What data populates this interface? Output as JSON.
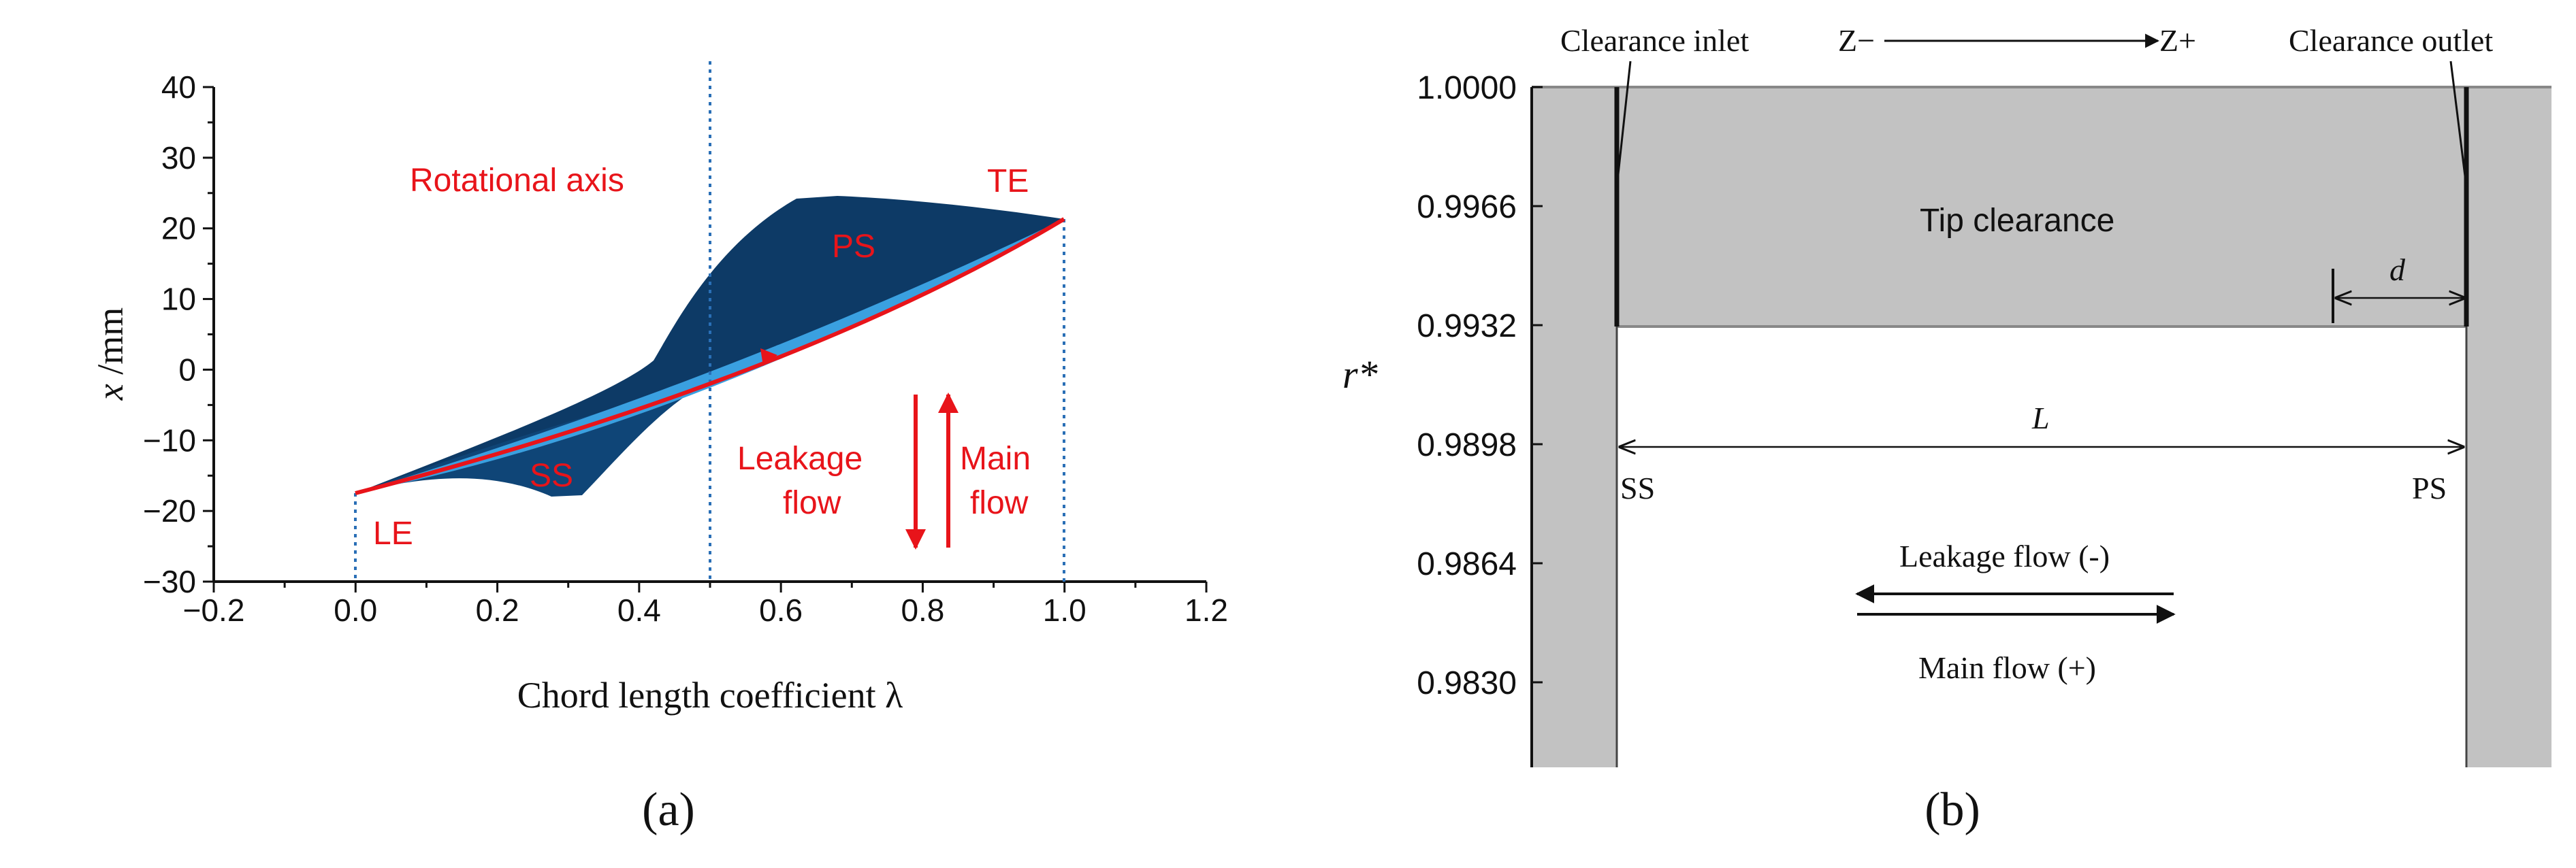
{
  "panel_a": {
    "caption": "(a)",
    "x_axis_label": "Chord length coefficient λ",
    "y_axis_label_italic": "x",
    "y_axis_label_unit": " /mm",
    "labels": {
      "rotational_axis": "Rotational axis",
      "te": "TE",
      "le": "LE",
      "ps": "PS",
      "ss": "SS",
      "leakage_line1": "Leakage",
      "leakage_line2": "flow",
      "main_line1": "Main",
      "main_line2": "flow"
    }
  },
  "panel_b": {
    "caption": "(b)",
    "y_axis_label": "r*",
    "labels": {
      "clearance_inlet": "Clearance inlet",
      "clearance_outlet": "Clearance outlet",
      "z_minus": "Z−",
      "z_plus": "Z+",
      "tip_clearance": "Tip clearance",
      "d": "d",
      "L": "L",
      "ss": "SS",
      "ps": "PS",
      "leakage_flow": "Leakage flow (-)",
      "main_flow": "Main flow (+)"
    }
  },
  "chart_data": [
    {
      "type": "line",
      "title": "",
      "xlabel": "Chord length coefficient λ",
      "ylabel": "x /mm",
      "xlim": [
        -0.2,
        1.2
      ],
      "ylim": [
        -30,
        40
      ],
      "x_ticks": [
        "−0.2",
        "0.0",
        "0.2",
        "0.4",
        "0.6",
        "0.8",
        "1.0",
        "1.2"
      ],
      "y_ticks": [
        "−30",
        "−20",
        "−10",
        "0",
        "10",
        "20",
        "30",
        "40"
      ],
      "x_tick_values": [
        -0.2,
        0,
        0.2,
        0.4,
        0.6,
        0.8,
        1.0,
        1.2
      ],
      "y_tick_values": [
        -30,
        -20,
        -10,
        0,
        10,
        20,
        30,
        40
      ],
      "reference_lines": [
        {
          "axis": "x",
          "value": 0.5,
          "label": "Rotational axis"
        },
        {
          "axis": "x",
          "value": 0.0,
          "label": "LE"
        },
        {
          "axis": "x",
          "value": 1.0,
          "label": "TE"
        }
      ],
      "series": [
        {
          "x": [
            0.0,
            0.5,
            1.0
          ],
          "y": [
            -17,
            -1,
            21.5
          ]
        }
      ],
      "colors": {
        "blade_dark": "#0d3a66",
        "blade_light": "#3aa0e0",
        "annotation": "#e8141a"
      }
    },
    {
      "type": "line",
      "ylabel": "r*",
      "ylim": [
        0.98,
        1.0
      ],
      "y_ticks": [
        "1.0000",
        "0.9966",
        "0.9932",
        "0.9898",
        "0.9864",
        "0.9830"
      ],
      "y_tick_values": [
        1.0,
        0.9966,
        0.9932,
        0.9898,
        0.9864,
        0.983
      ],
      "tip_clearance_lower_r": 0.9932,
      "colors": {
        "fill": "#c2c2c2"
      }
    }
  ]
}
